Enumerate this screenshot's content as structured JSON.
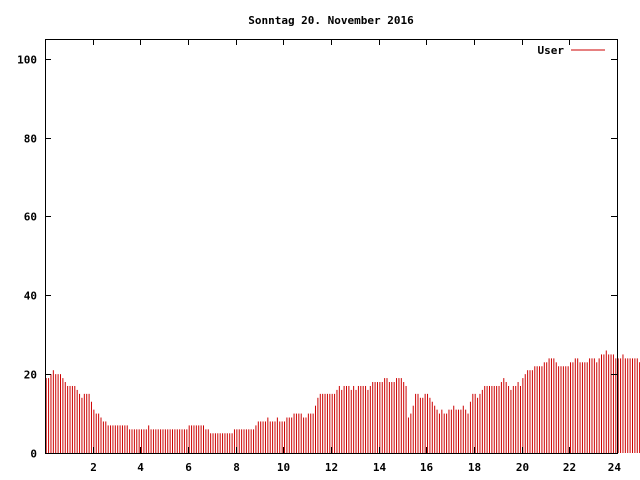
{
  "colors": {
    "series": "#cc0000",
    "axis": "#000000",
    "background": "#ffffff"
  },
  "chart_data": {
    "type": "bar",
    "title": "Sonntag 20. November 2016",
    "xlabel": "",
    "ylabel": "",
    "xlim": [
      0,
      24
    ],
    "ylim": [
      0,
      105
    ],
    "grid": false,
    "legend_position": "top-right",
    "x_ticks": [
      2,
      4,
      6,
      8,
      10,
      12,
      14,
      16,
      18,
      20,
      22,
      24
    ],
    "y_ticks": [
      0,
      20,
      40,
      60,
      80,
      100
    ],
    "x_tick_labels": [
      "2",
      "4",
      "6",
      "8",
      "10",
      "12",
      "14",
      "16",
      "18",
      "20",
      "22",
      "24"
    ],
    "y_tick_labels": [
      "0",
      "20",
      "40",
      "60",
      "80",
      "100"
    ],
    "series": [
      {
        "name": "User",
        "interval_hours": 0.1,
        "values": [
          19,
          19,
          20,
          21,
          20,
          20,
          20,
          19,
          18,
          17,
          17,
          17,
          17,
          16,
          15,
          14,
          15,
          15,
          15,
          13,
          11,
          10,
          10,
          9,
          8,
          8,
          7,
          7,
          7,
          7,
          7,
          7,
          7,
          7,
          7,
          6,
          6,
          6,
          6,
          6,
          6,
          6,
          6,
          7,
          6,
          6,
          6,
          6,
          6,
          6,
          6,
          6,
          6,
          6,
          6,
          6,
          6,
          6,
          6,
          6,
          7,
          7,
          7,
          7,
          7,
          7,
          7,
          6,
          6,
          5,
          5,
          5,
          5,
          5,
          5,
          5,
          5,
          5,
          5,
          6,
          6,
          6,
          6,
          6,
          6,
          6,
          6,
          6,
          7,
          8,
          8,
          8,
          8,
          9,
          8,
          8,
          8,
          9,
          8,
          8,
          8,
          9,
          9,
          9,
          10,
          10,
          10,
          10,
          9,
          9,
          10,
          10,
          10,
          12,
          14,
          15,
          15,
          15,
          15,
          15,
          15,
          15,
          16,
          17,
          16,
          17,
          17,
          17,
          16,
          17,
          16,
          17,
          17,
          17,
          17,
          16,
          17,
          18,
          18,
          18,
          18,
          18,
          19,
          19,
          18,
          18,
          18,
          19,
          19,
          19,
          18,
          17,
          9,
          10,
          12,
          15,
          15,
          14,
          14,
          15,
          15,
          14,
          13,
          12,
          11,
          10,
          11,
          10,
          10,
          11,
          11,
          12,
          11,
          11,
          11,
          12,
          11,
          10,
          13,
          15,
          15,
          14,
          15,
          16,
          17,
          17,
          17,
          17,
          17,
          17,
          17,
          18,
          19,
          18,
          17,
          16,
          17,
          17,
          18,
          17,
          19,
          20,
          21,
          21,
          21,
          22,
          22,
          22,
          22,
          23,
          23,
          24,
          24,
          24,
          23,
          22,
          22,
          22,
          22,
          22,
          23,
          23,
          24,
          24,
          23,
          23,
          23,
          23,
          24,
          24,
          24,
          23,
          24,
          25,
          25,
          26,
          25,
          25,
          25,
          24,
          24,
          24,
          25,
          24,
          24,
          24,
          24,
          24,
          24,
          23,
          22,
          22,
          21,
          20,
          20,
          19,
          20,
          20,
          19,
          18,
          18,
          18,
          18,
          18,
          18,
          18,
          18,
          18,
          18,
          18
        ]
      }
    ]
  }
}
